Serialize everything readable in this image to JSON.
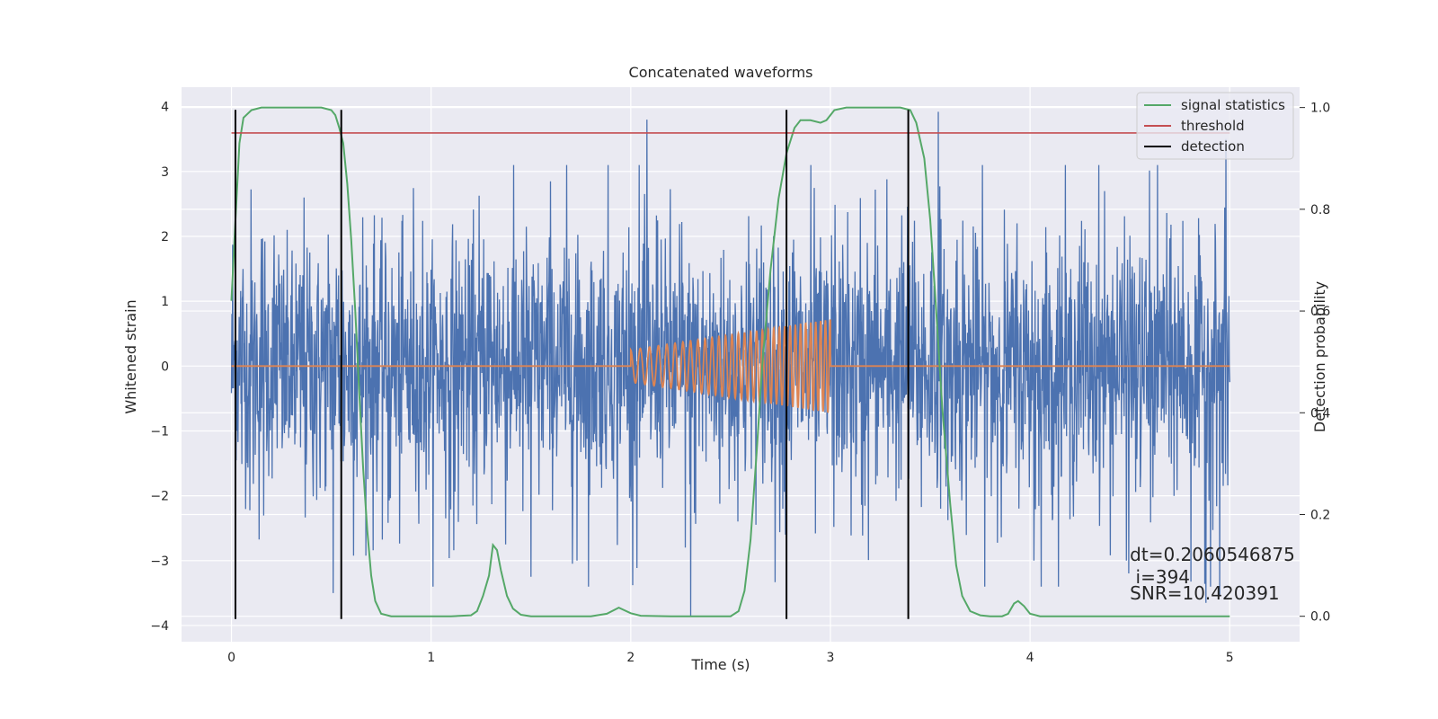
{
  "chart_data": {
    "type": "line",
    "title": "Concatenated waveforms",
    "xlabel": "Time (s)",
    "ylabel": "Whitened strain",
    "y2label": "Detection probability",
    "xlim": [
      -0.25,
      5.35
    ],
    "ylim": [
      -4.25,
      4.3
    ],
    "y2lim": [
      -0.05,
      1.04
    ],
    "xticks": [
      0,
      1,
      2,
      3,
      4,
      5
    ],
    "yticks": [
      -4,
      -3,
      -2,
      -1,
      0,
      1,
      2,
      3,
      4
    ],
    "y2ticks": [
      0.0,
      0.2,
      0.4,
      0.6,
      0.8,
      1.0
    ],
    "xtick_labels": [
      "0",
      "1",
      "2",
      "3",
      "4",
      "5"
    ],
    "ytick_labels": [
      "−4",
      "−3",
      "−2",
      "−1",
      "0",
      "1",
      "2",
      "3",
      "4"
    ],
    "y2tick_labels": [
      "0.0",
      "0.2",
      "0.4",
      "0.6",
      "0.8",
      "1.0"
    ],
    "grid": true,
    "legend_position": "top-right",
    "colors": {
      "strain": "#4c72b0",
      "injection": "#dd8452",
      "signal_statistics": "#55a868",
      "threshold": "#c44e52",
      "detection": "#000000",
      "axes_background": "#eaeaf2",
      "grid": "#ffffff"
    },
    "series": [
      {
        "key": "strain",
        "axis": "left",
        "note_kind": "noise",
        "x_range": [
          0,
          5
        ],
        "typical_amplitude": 2.0,
        "spikes": [
          [
            2.08,
            3.8
          ],
          [
            3.54,
            3.92
          ],
          [
            4.98,
            3.5
          ],
          [
            2.3,
            -3.85
          ],
          [
            1.5,
            -3.25
          ],
          [
            4.88,
            -3.65
          ],
          [
            4.95,
            -3.55
          ],
          [
            0.51,
            -3.5
          ],
          [
            4.02,
            -3.0
          ],
          [
            1.73,
            -3.0
          ]
        ]
      },
      {
        "key": "injection",
        "axis": "left",
        "note_kind": "chirp",
        "x_range": [
          2.0,
          3.0
        ],
        "amplitude_start": 0.25,
        "amplitude_end": 0.72,
        "freq_start": 20,
        "freq_end": 42
      },
      {
        "name": "signal statistics",
        "key": "signal_statistics",
        "axis": "right",
        "points": [
          [
            0.0,
            0.62
          ],
          [
            0.02,
            0.78
          ],
          [
            0.04,
            0.93
          ],
          [
            0.06,
            0.98
          ],
          [
            0.1,
            0.995
          ],
          [
            0.15,
            1.0
          ],
          [
            0.3,
            1.0
          ],
          [
            0.45,
            1.0
          ],
          [
            0.5,
            0.995
          ],
          [
            0.52,
            0.985
          ],
          [
            0.54,
            0.96
          ],
          [
            0.56,
            0.93
          ],
          [
            0.58,
            0.85
          ],
          [
            0.6,
            0.74
          ],
          [
            0.62,
            0.6
          ],
          [
            0.64,
            0.44
          ],
          [
            0.66,
            0.29
          ],
          [
            0.68,
            0.17
          ],
          [
            0.7,
            0.08
          ],
          [
            0.72,
            0.03
          ],
          [
            0.75,
            0.005
          ],
          [
            0.8,
            0.0
          ],
          [
            1.1,
            0.0
          ],
          [
            1.2,
            0.002
          ],
          [
            1.23,
            0.01
          ],
          [
            1.26,
            0.04
          ],
          [
            1.29,
            0.08
          ],
          [
            1.31,
            0.14
          ],
          [
            1.33,
            0.13
          ],
          [
            1.35,
            0.09
          ],
          [
            1.38,
            0.04
          ],
          [
            1.41,
            0.015
          ],
          [
            1.45,
            0.003
          ],
          [
            1.5,
            0.0
          ],
          [
            1.8,
            0.0
          ],
          [
            1.88,
            0.005
          ],
          [
            1.94,
            0.017
          ],
          [
            2.0,
            0.006
          ],
          [
            2.05,
            0.001
          ],
          [
            2.2,
            0.0
          ],
          [
            2.5,
            0.0
          ],
          [
            2.54,
            0.01
          ],
          [
            2.57,
            0.05
          ],
          [
            2.6,
            0.15
          ],
          [
            2.63,
            0.32
          ],
          [
            2.66,
            0.5
          ],
          [
            2.7,
            0.68
          ],
          [
            2.74,
            0.82
          ],
          [
            2.78,
            0.91
          ],
          [
            2.82,
            0.96
          ],
          [
            2.85,
            0.975
          ],
          [
            2.9,
            0.975
          ],
          [
            2.95,
            0.97
          ],
          [
            2.98,
            0.975
          ],
          [
            3.02,
            0.995
          ],
          [
            3.08,
            1.0
          ],
          [
            3.35,
            1.0
          ],
          [
            3.4,
            0.995
          ],
          [
            3.43,
            0.97
          ],
          [
            3.47,
            0.9
          ],
          [
            3.5,
            0.78
          ],
          [
            3.53,
            0.6
          ],
          [
            3.56,
            0.41
          ],
          [
            3.6,
            0.22
          ],
          [
            3.63,
            0.1
          ],
          [
            3.66,
            0.04
          ],
          [
            3.7,
            0.01
          ],
          [
            3.75,
            0.002
          ],
          [
            3.8,
            0.0
          ],
          [
            3.86,
            0.0
          ],
          [
            3.89,
            0.005
          ],
          [
            3.92,
            0.025
          ],
          [
            3.94,
            0.03
          ],
          [
            3.97,
            0.02
          ],
          [
            4.0,
            0.005
          ],
          [
            4.05,
            0.0
          ],
          [
            5.0,
            0.0
          ]
        ]
      },
      {
        "name": "threshold",
        "key": "threshold",
        "axis": "right",
        "value": 0.95,
        "x_range": [
          0,
          5
        ]
      },
      {
        "name": "detection",
        "key": "detection",
        "axis": "left",
        "x_positions": [
          0.02,
          0.55,
          2.78,
          3.39
        ],
        "y_range": [
          -3.9,
          3.95
        ]
      }
    ],
    "annotations": [
      {
        "text": "dt=0.2060546875",
        "x": 4.5,
        "y": -3.0
      },
      {
        "text": " i=394",
        "x": 4.5,
        "y": -3.35
      },
      {
        "text": "SNR=10.420391",
        "x": 4.5,
        "y": -3.6
      }
    ]
  }
}
